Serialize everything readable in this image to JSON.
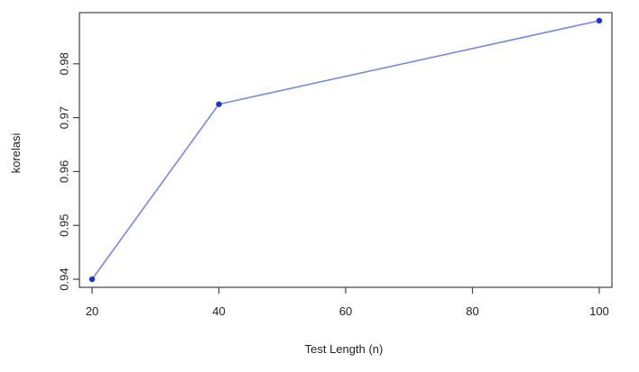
{
  "chart_data": {
    "type": "line",
    "title": "",
    "xlabel": "Test Length (n)",
    "ylabel": "korelasi",
    "x": [
      20,
      40,
      100
    ],
    "series": [
      {
        "values": [
          0.94,
          0.9725,
          0.988
        ]
      }
    ],
    "xlim": [
      18,
      102
    ],
    "ylim": [
      0.9385,
      0.9895
    ],
    "xticks": [
      20,
      40,
      60,
      80,
      100
    ],
    "yticks": [
      0.94,
      0.95,
      0.96,
      0.97,
      0.98
    ],
    "xtick_labels": [
      "20",
      "40",
      "60",
      "80",
      "100"
    ],
    "ytick_labels": [
      "0.94",
      "0.95",
      "0.96",
      "0.97",
      "0.98"
    ],
    "grid": false,
    "colors": {
      "line": "#7b88e0",
      "points": "#1d2fd6"
    }
  }
}
